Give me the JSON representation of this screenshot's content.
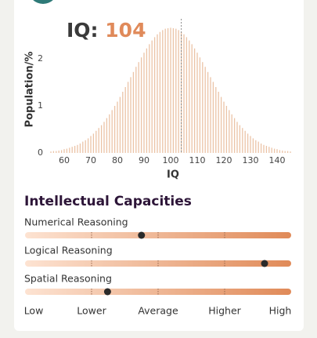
{
  "chart_data": {
    "type": "bar",
    "score_label": "IQ:",
    "score": 104,
    "xlabel": "IQ",
    "ylabel": "Population/%",
    "color": "#ebc3a6",
    "marker_color": "#8a8a8a",
    "title_color": "#3a3a3a",
    "score_color": "#e08a5a",
    "x": [
      55,
      56,
      57,
      58,
      59,
      60,
      61,
      62,
      63,
      64,
      65,
      66,
      67,
      68,
      69,
      70,
      71,
      72,
      73,
      74,
      75,
      76,
      77,
      78,
      79,
      80,
      81,
      82,
      83,
      84,
      85,
      86,
      87,
      88,
      89,
      90,
      91,
      92,
      93,
      94,
      95,
      96,
      97,
      98,
      99,
      100,
      101,
      102,
      103,
      104,
      105,
      106,
      107,
      108,
      109,
      110,
      111,
      112,
      113,
      114,
      115,
      116,
      117,
      118,
      119,
      120,
      121,
      122,
      123,
      124,
      125,
      126,
      127,
      128,
      129,
      130,
      131,
      132,
      133,
      134,
      135,
      136,
      137,
      138,
      139,
      140,
      141,
      142,
      143,
      144,
      145
    ],
    "series": [
      {
        "values": [
          0.03,
          0.04,
          0.04,
          0.05,
          0.06,
          0.08,
          0.09,
          0.11,
          0.13,
          0.15,
          0.17,
          0.2,
          0.24,
          0.27,
          0.31,
          0.36,
          0.41,
          0.47,
          0.53,
          0.59,
          0.66,
          0.74,
          0.82,
          0.91,
          1.0,
          1.09,
          1.19,
          1.3,
          1.4,
          1.51,
          1.61,
          1.72,
          1.83,
          1.93,
          2.03,
          2.13,
          2.22,
          2.31,
          2.39,
          2.46,
          2.52,
          2.57,
          2.61,
          2.64,
          2.65,
          2.66,
          2.65,
          2.64,
          2.61,
          2.57,
          2.52,
          2.46,
          2.39,
          2.31,
          2.22,
          2.13,
          2.03,
          1.93,
          1.83,
          1.72,
          1.61,
          1.51,
          1.4,
          1.3,
          1.19,
          1.09,
          1.0,
          0.91,
          0.82,
          0.74,
          0.66,
          0.59,
          0.53,
          0.47,
          0.41,
          0.36,
          0.31,
          0.27,
          0.24,
          0.2,
          0.17,
          0.15,
          0.13,
          0.11,
          0.09,
          0.08,
          0.06,
          0.05,
          0.04,
          0.04,
          0.03
        ]
      }
    ],
    "xlim": [
      52,
      146
    ],
    "ylim": [
      0,
      2.75
    ],
    "xticks": [
      60,
      70,
      80,
      90,
      100,
      110,
      120,
      130,
      140
    ],
    "yticks": [
      0,
      1,
      2
    ]
  },
  "capacities": {
    "title": "Intellectual Capacities",
    "lim": [
      0,
      4
    ],
    "scale": [
      {
        "value": 0,
        "label": "Low"
      },
      {
        "value": 1,
        "label": "Lower"
      },
      {
        "value": 2,
        "label": "Average"
      },
      {
        "value": 3,
        "label": "Higher"
      },
      {
        "value": 4,
        "label": "High"
      }
    ],
    "items": [
      {
        "name": "Numerical Reasoning",
        "value": 1.75
      },
      {
        "name": "Logical Reasoning",
        "value": 3.6
      },
      {
        "name": "Spatial Reasoning",
        "value": 1.24
      }
    ]
  }
}
